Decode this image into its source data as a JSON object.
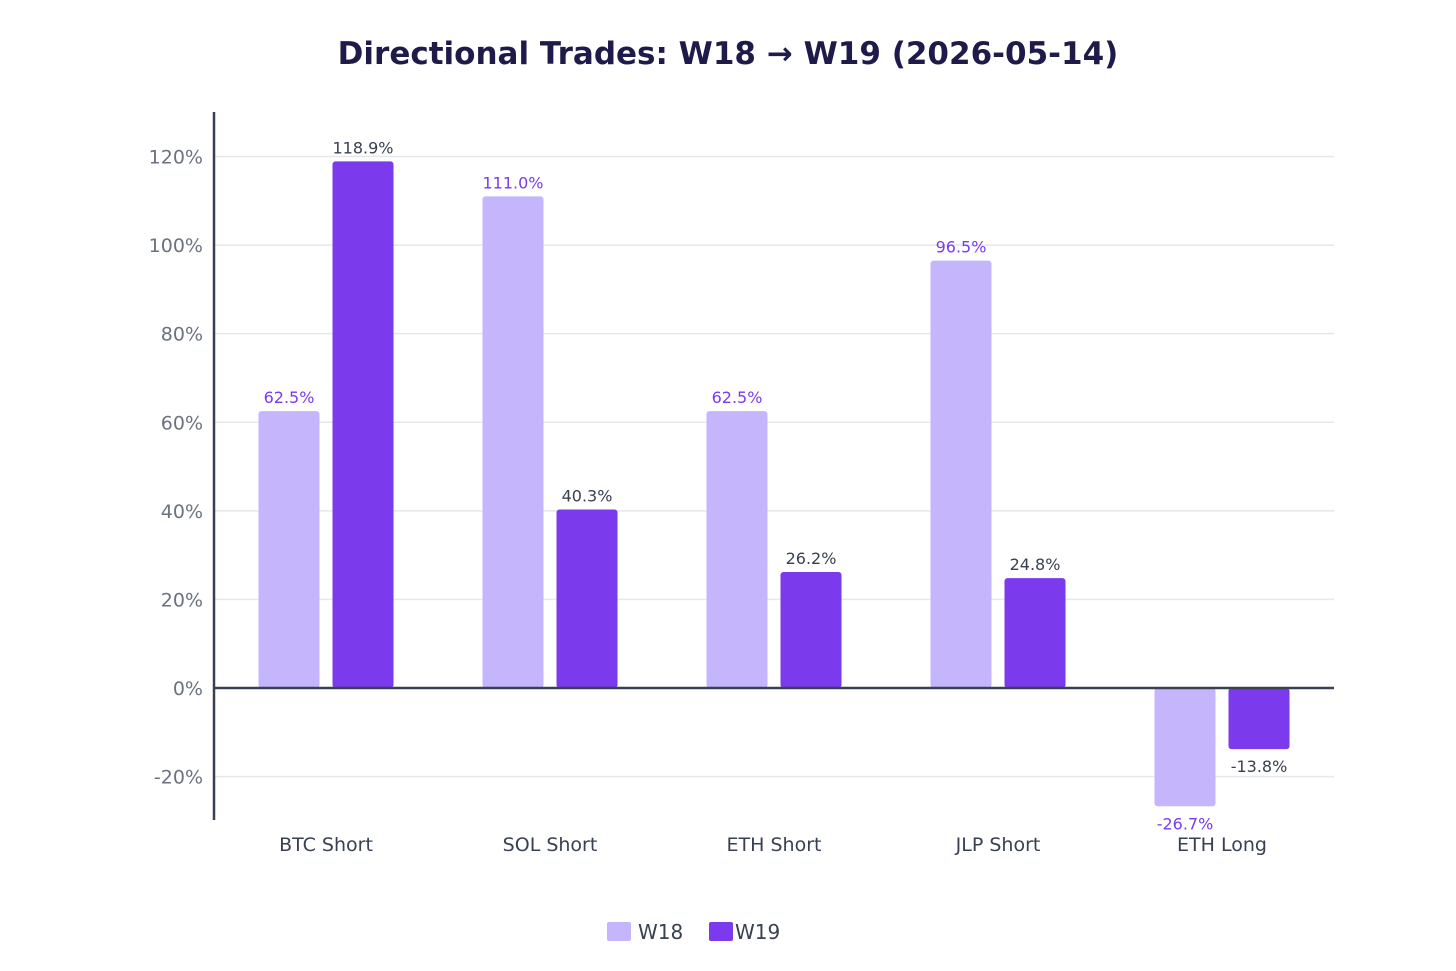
{
  "chart_data": {
    "type": "bar",
    "title": "Directional Trades: W18 → W19 (2026-05-14)",
    "xlabel": "",
    "ylabel": "",
    "categories": [
      "BTC Short",
      "SOL Short",
      "ETH Short",
      "JLP Short",
      "ETH Long"
    ],
    "series": [
      {
        "name": "W18",
        "values": [
          62.5,
          111.0,
          62.5,
          96.5,
          -26.7
        ],
        "labels": [
          "62.5%",
          "111.0%",
          "62.5%",
          "96.5%",
          "-26.7%"
        ],
        "color": "#c4b5fd",
        "label_color": "#7c3aed"
      },
      {
        "name": "W19",
        "values": [
          118.9,
          40.3,
          26.2,
          24.8,
          -13.8
        ],
        "labels": [
          "118.9%",
          "40.3%",
          "26.2%",
          "24.8%",
          "-13.8%"
        ],
        "color": "#7c3aed",
        "label_color": "#374151"
      }
    ],
    "ylim": [
      -30,
      130
    ],
    "yticks": [
      -20,
      0,
      20,
      40,
      60,
      80,
      100,
      120
    ],
    "ytick_labels": [
      "-20%",
      "0%",
      "20%",
      "40%",
      "60%",
      "80%",
      "100%",
      "120%"
    ],
    "grid": true,
    "legend": "bottom-center"
  }
}
